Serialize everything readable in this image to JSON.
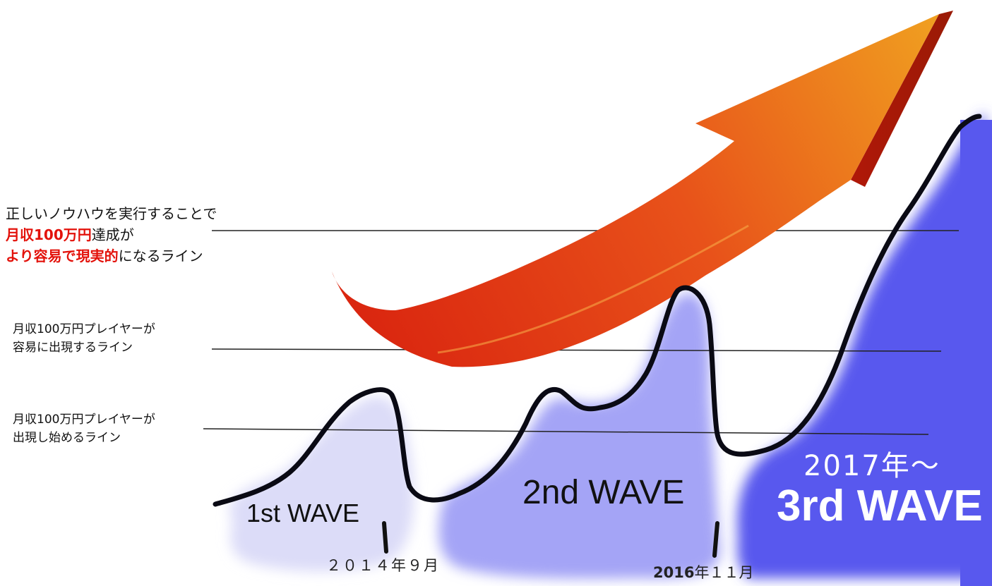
{
  "labels": {
    "top": {
      "line1": "正しいノウハウを実行することで",
      "line2_highlight": "月収100万円",
      "line2_rest": "達成が",
      "line3_highlight": "より容易で現実的",
      "line3_rest": "になるライン"
    },
    "middle": {
      "line1": "月収100万円プレイヤーが",
      "line2": "容易に出現するライン"
    },
    "lower": {
      "line1": "月収100万円プレイヤーが",
      "line2": "出現し始めるライン"
    }
  },
  "waves": {
    "first": "1st WAVE",
    "second": "2nd WAVE",
    "third_year": "2017年～",
    "third": "3rd WAVE"
  },
  "dates": {
    "first": "２０１４年９月",
    "second_bold": "2016",
    "second_rest": "年１１月"
  },
  "colors": {
    "highlight_text": "#e3120b",
    "wave1_fill": "#dcdcf8",
    "wave2_fill": "#a4a4f6",
    "wave3_fill": "#5858ee",
    "arrow_tip": "#f0a020",
    "arrow_tail": "#d8200e",
    "curve": "#0a0a14"
  }
}
